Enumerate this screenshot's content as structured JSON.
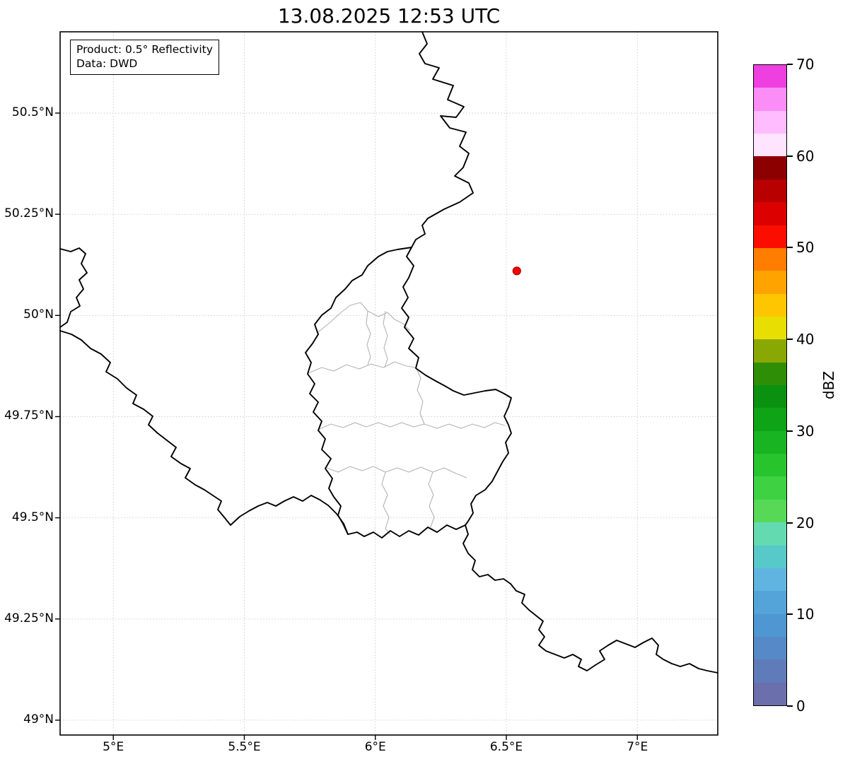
{
  "title": "13.08.2025 12:53 UTC",
  "info_box": {
    "line1": "Product: 0.5° Reflectivity",
    "line2": "Data: DWD"
  },
  "map": {
    "x_ticks": [
      {
        "value": 5.0,
        "label": "5°E"
      },
      {
        "value": 5.5,
        "label": "5.5°E"
      },
      {
        "value": 6.0,
        "label": "6°E"
      },
      {
        "value": 6.5,
        "label": "6.5°E"
      },
      {
        "value": 7.0,
        "label": "7°E"
      }
    ],
    "y_ticks": [
      {
        "value": 50.5,
        "label": "50.5°N"
      },
      {
        "value": 50.25,
        "label": "50.25°N"
      },
      {
        "value": 50.0,
        "label": "50°N"
      },
      {
        "value": 49.75,
        "label": "49.75°N"
      },
      {
        "value": 49.5,
        "label": "49.5°N"
      },
      {
        "value": 49.25,
        "label": "49.25°N"
      },
      {
        "value": 49.0,
        "label": "49°N"
      }
    ],
    "marker": {
      "lon": 6.54,
      "lat": 50.11,
      "fill": "#ff0000",
      "edge": "#a00000"
    }
  },
  "colorbar": {
    "label": "dBZ",
    "vmin": 0,
    "vmax": 70,
    "ticks": [
      0,
      10,
      20,
      30,
      40,
      50,
      60,
      70
    ],
    "colors_bottom_to_top": [
      "#6b6fab",
      "#607bb9",
      "#5689c7",
      "#4e97d2",
      "#54a4d9",
      "#60b5e0",
      "#57c9c9",
      "#63dab0",
      "#57d957",
      "#3ed242",
      "#27c42e",
      "#18b421",
      "#0fa317",
      "#0a9110",
      "#2e8f06",
      "#8aa804",
      "#e8de02",
      "#fec600",
      "#ffa300",
      "#ff7d00",
      "#fb0e00",
      "#dc0000",
      "#b80000",
      "#8c0000",
      "#ffe4ff",
      "#ffbcff",
      "#fb8df7",
      "#ee3fe0"
    ]
  }
}
